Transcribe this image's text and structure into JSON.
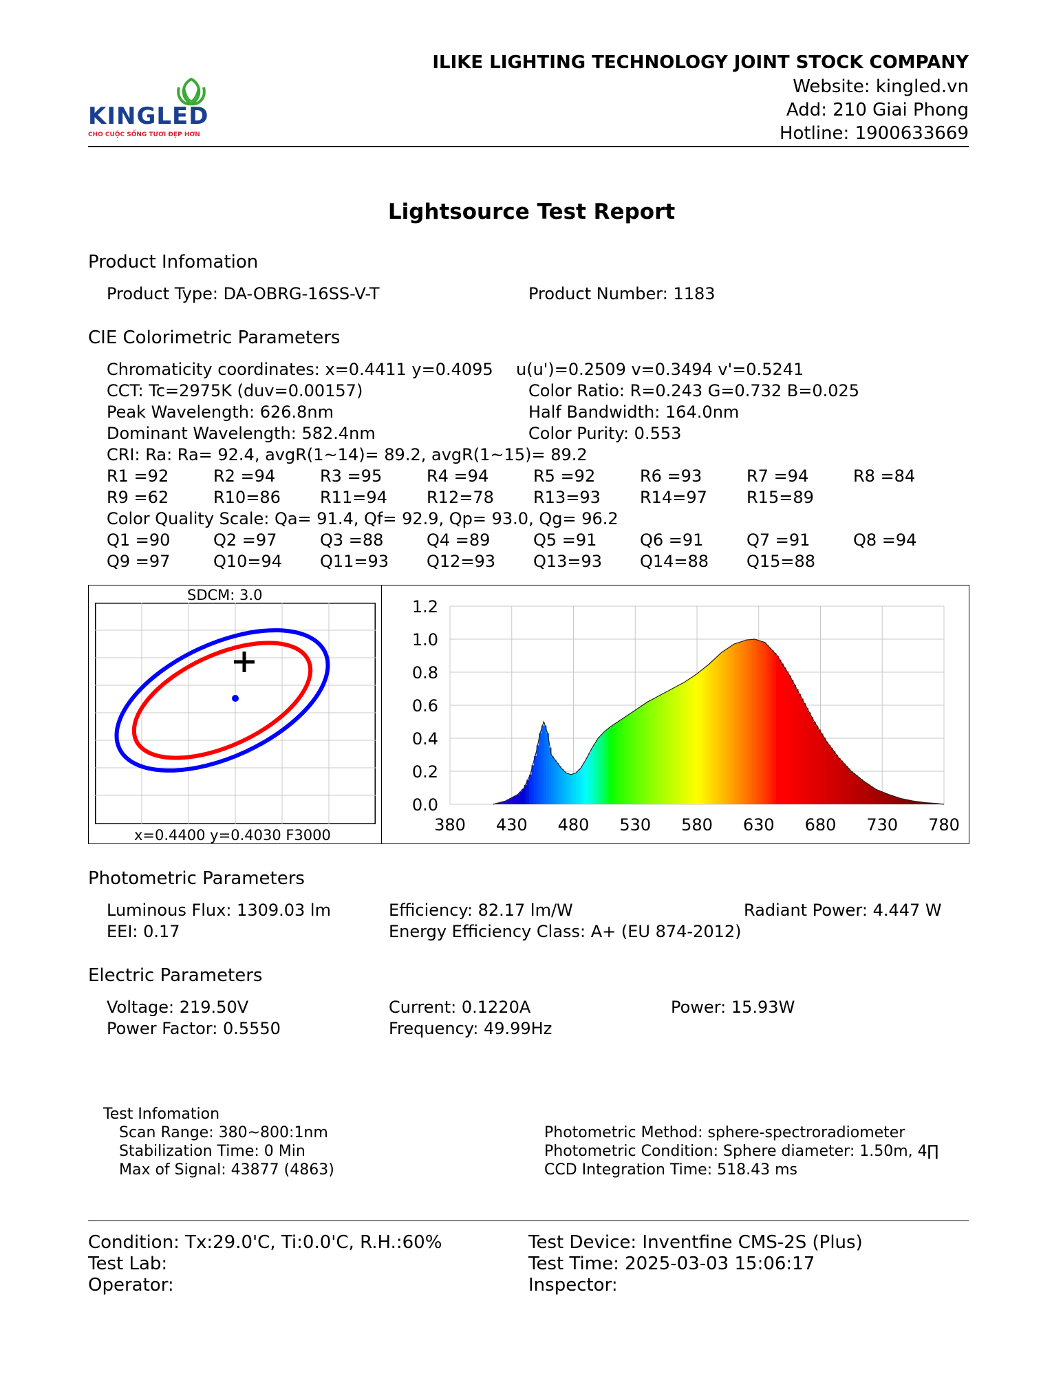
{
  "header": {
    "logo_text": "KINGLED",
    "logo_slogan": "CHO CUỘC SỐNG TƯƠI ĐẸP HƠN",
    "company": "ILIKE LIGHTING TECHNOLOGY JOINT STOCK COMPANY",
    "website": "Website: kingled.vn",
    "address": "Add: 210 Giai Phong",
    "hotline": "Hotline: 1900633669",
    "brand_color": "#d9232e",
    "leaf_color": "#3aa935"
  },
  "title": "Lightsource Test Report",
  "product": {
    "heading": "Product Infomation",
    "type": "Product Type: DA-OBRG-16SS-V-T",
    "number": "Product Number: 1183"
  },
  "cie": {
    "heading": "CIE Colorimetric Parameters",
    "chromaticity": "Chromaticity coordinates: x=0.4411 y=0.4095",
    "uv": "u(u')=0.2509 v=0.3494 v'=0.5241",
    "cct": "CCT: Tc=2975K (duv=0.00157)",
    "color_ratio": "Color Ratio: R=0.243  G=0.732  B=0.025",
    "peak": "Peak Wavelength: 626.8nm",
    "half_bandwidth": "Half Bandwidth: 164.0nm",
    "dominant": "Dominant Wavelength: 582.4nm",
    "purity": "Color Purity: 0.553",
    "cri": "CRI: Ra: Ra= 92.4, avgR(1~14)= 89.2, avgR(1~15)= 89.2",
    "r_row1": [
      "R1 =92",
      "R2 =94",
      "R3 =95",
      "R4 =94",
      "R5 =92",
      "R6 =93",
      "R7 =94",
      "R8 =84"
    ],
    "r_row2": [
      "R9 =62",
      "R10=86",
      "R11=94",
      "R12=78",
      "R13=93",
      "R14=97",
      "R15=89"
    ],
    "cqs": "Color Quality Scale: Qa= 91.4, Qf= 92.9, Qp= 93.0, Qg= 96.2",
    "q_row1": [
      "Q1 =90",
      "Q2 =97",
      "Q3 =88",
      "Q4 =89",
      "Q5 =91",
      "Q6 =91",
      "Q7 =91",
      "Q8 =94"
    ],
    "q_row2": [
      "Q9 =97",
      "Q10=94",
      "Q11=93",
      "Q12=93",
      "Q13=93",
      "Q14=88",
      "Q15=88"
    ]
  },
  "sdcm": {
    "label": "SDCM:   3.0",
    "footer": "x=0.4400 y=0.4030 F3000",
    "outer_color": "#0000ff",
    "inner_color": "#ff0000"
  },
  "chart_data": {
    "type": "area",
    "title": "",
    "xlabel": "",
    "ylabel": "",
    "xlim": [
      380,
      780
    ],
    "ylim": [
      0,
      1.2
    ],
    "x_ticks": [
      380,
      430,
      480,
      530,
      580,
      630,
      680,
      730,
      780
    ],
    "y_ticks": [
      "1.2",
      "1.0",
      "0.8",
      "0.6",
      "0.4",
      "0.2",
      "0.0"
    ],
    "grid": true,
    "x": [
      415,
      425,
      435,
      440,
      445,
      450,
      453,
      456,
      459,
      462,
      466,
      470,
      474,
      478,
      482,
      486,
      490,
      495,
      500,
      505,
      510,
      520,
      530,
      540,
      550,
      560,
      570,
      580,
      590,
      600,
      610,
      620,
      626.8,
      635,
      645,
      655,
      665,
      675,
      685,
      695,
      705,
      715,
      725,
      735,
      745,
      755,
      765,
      775,
      780
    ],
    "values": [
      0.0,
      0.02,
      0.06,
      0.1,
      0.18,
      0.32,
      0.43,
      0.5,
      0.43,
      0.3,
      0.26,
      0.22,
      0.19,
      0.18,
      0.19,
      0.22,
      0.27,
      0.34,
      0.4,
      0.44,
      0.47,
      0.52,
      0.57,
      0.62,
      0.66,
      0.7,
      0.74,
      0.79,
      0.85,
      0.92,
      0.97,
      0.995,
      1.0,
      0.98,
      0.9,
      0.78,
      0.64,
      0.5,
      0.38,
      0.28,
      0.2,
      0.14,
      0.09,
      0.06,
      0.035,
      0.02,
      0.01,
      0.004,
      0.0
    ]
  },
  "photometric": {
    "heading": "Photometric Parameters",
    "flux": "Luminous Flux: 1309.03 lm",
    "efficiency": "Efficiency: 82.17 lm/W",
    "radiant": "Radiant Power: 4.447 W",
    "eei": "EEI:  0.17",
    "energy_class": "Energy Efficiency Class: A+ (EU 874-2012)"
  },
  "electric": {
    "heading": "Electric Parameters",
    "voltage": "Voltage: 219.50V",
    "current": "Current: 0.1220A",
    "power": "Power: 15.93W",
    "pf": "Power Factor: 0.5550",
    "frequency": "Frequency: 49.99Hz"
  },
  "test_info": {
    "heading": "Test Infomation",
    "scan": "Scan Range: 380~800:1nm",
    "stabilization": "Stabilization Time: 0 Min",
    "max_signal": "Max of Signal: 43877 (4863)",
    "method": "Photometric Method: sphere-spectroradiometer",
    "condition": "Photometric Condition: Sphere diameter: 1.50m, 4∏",
    "ccd": "CCD Integration Time: 518.43 ms"
  },
  "footer": {
    "condition": "Condition: Tx:29.0'C, Ti:0.0'C, R.H.:60%",
    "device": "Test Device: Inventfine CMS-2S (Plus)",
    "lab": "Test Lab:",
    "time": "Test Time: 2025-03-03 15:06:17",
    "operator": "Operator:",
    "inspector": "Inspector:"
  }
}
